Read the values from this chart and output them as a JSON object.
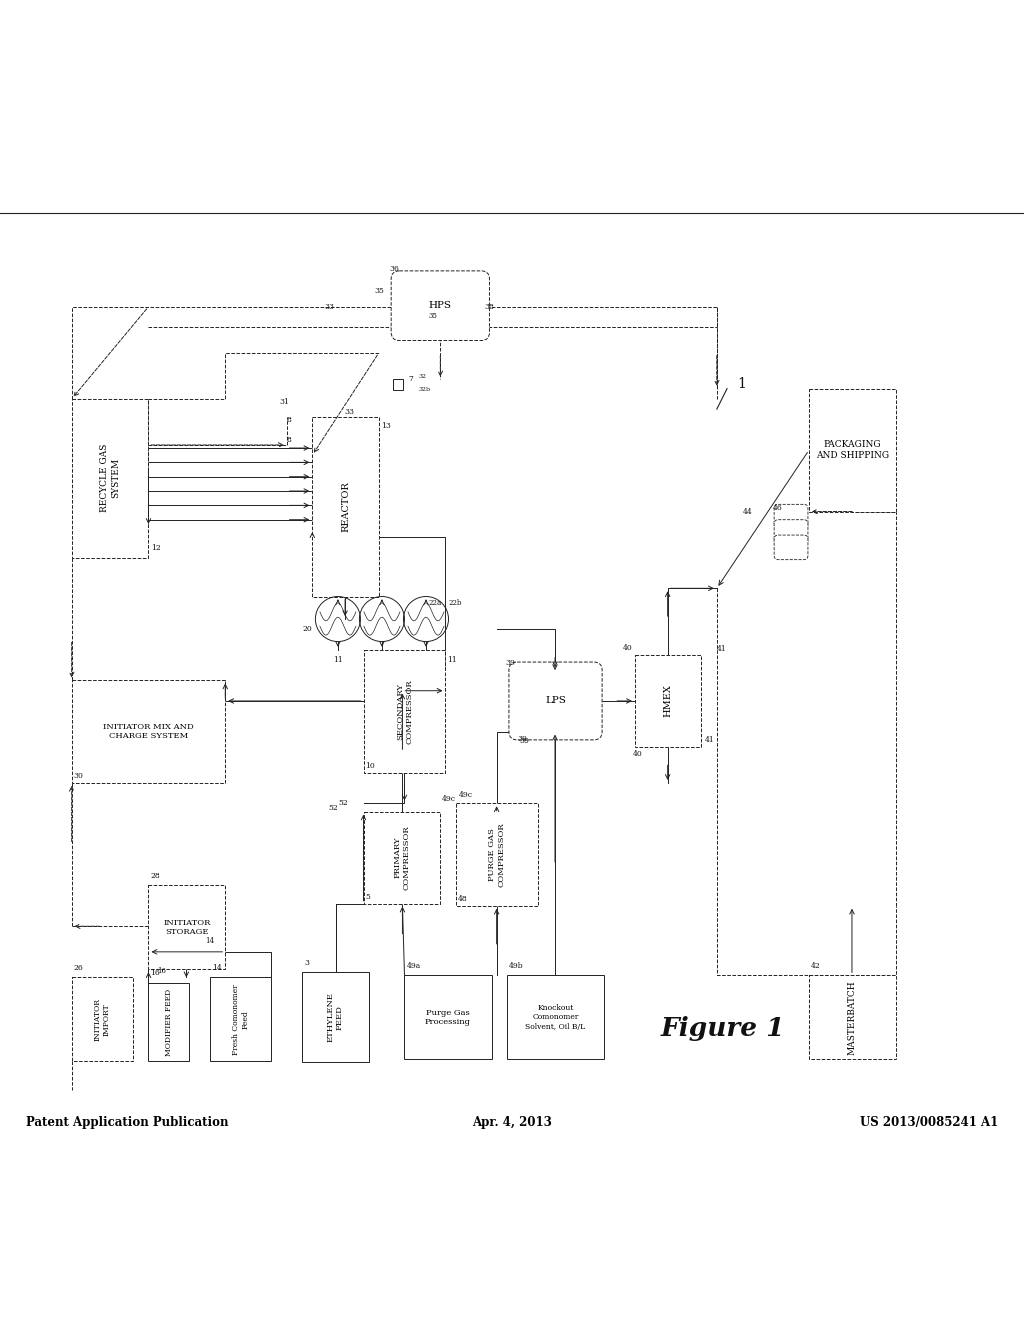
{
  "header_left": "Patent Application Publication",
  "header_center": "Apr. 4, 2013",
  "header_right": "US 2013/0085241 A1",
  "fig_label": "Figure 1",
  "bg": "#ffffff"
}
